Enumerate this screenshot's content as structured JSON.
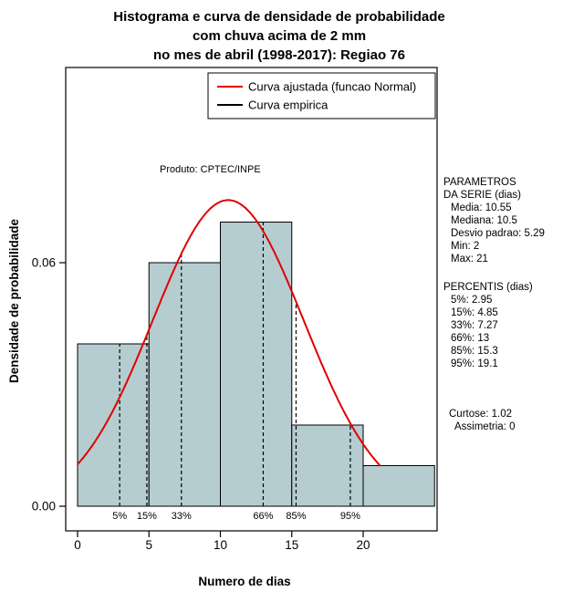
{
  "title": {
    "line1": "Histograma e curva de densidade de probabilidade",
    "line2": "com chuva acima de 2 mm",
    "line3": "no mes de abril (1998-2017): Regiao 76"
  },
  "chart_data": {
    "type": "bar",
    "subtype": "histogram-with-density",
    "xlabel": "Numero de dias",
    "ylabel": "Densidade de probabilidade",
    "x_ticks": [
      0,
      5,
      10,
      15,
      20
    ],
    "y_ticks": [
      {
        "value": 0.0,
        "label": "0.00"
      },
      {
        "value": 0.06,
        "label": "0.06"
      }
    ],
    "xlim": [
      0,
      25
    ],
    "ylim": [
      0,
      0.075
    ],
    "bin_edges": [
      0,
      5,
      10,
      15,
      20,
      25
    ],
    "bin_densities": [
      0.04,
      0.06,
      0.07,
      0.02,
      0.01
    ],
    "normal_fit": {
      "mean": 10.55,
      "sd": 5.29,
      "x_range": [
        0,
        21.2
      ]
    },
    "percentiles": [
      {
        "label": "5%",
        "value": 2.95
      },
      {
        "label": "15%",
        "value": 4.85
      },
      {
        "label": "33%",
        "value": 7.27
      },
      {
        "label": "66%",
        "value": 13
      },
      {
        "label": "85%",
        "value": 15.3
      },
      {
        "label": "95%",
        "value": 19.1
      }
    ],
    "legend": [
      {
        "label": "Curva ajustada (funcao Normal)",
        "color": "#e00000"
      },
      {
        "label": "Curva empirica",
        "color": "#000000"
      }
    ],
    "annotation": "Produto: CPTEC/INPE",
    "bar_color": "#b5cdd0",
    "bar_border_color": "#000000",
    "curve_color": "#e00000",
    "grid": false,
    "legend_position": "top-right"
  },
  "side_panel": {
    "parametros": {
      "heading_line1": "PARAMETROS",
      "heading_line2": "DA SERIE (dias)",
      "items": [
        "Media: 10.55",
        "Mediana: 10.5",
        "Desvio padrao: 5.29",
        "Min: 2",
        "Max: 21"
      ]
    },
    "percentis": {
      "heading": "PERCENTIS (dias)",
      "items": [
        "5%: 2.95",
        "15%: 4.85",
        "33%: 7.27",
        "66%: 13",
        "85%: 15.3",
        "95%: 19.1"
      ]
    },
    "extras": [
      "Curtose: 1.02",
      "Assimetria: 0"
    ]
  }
}
